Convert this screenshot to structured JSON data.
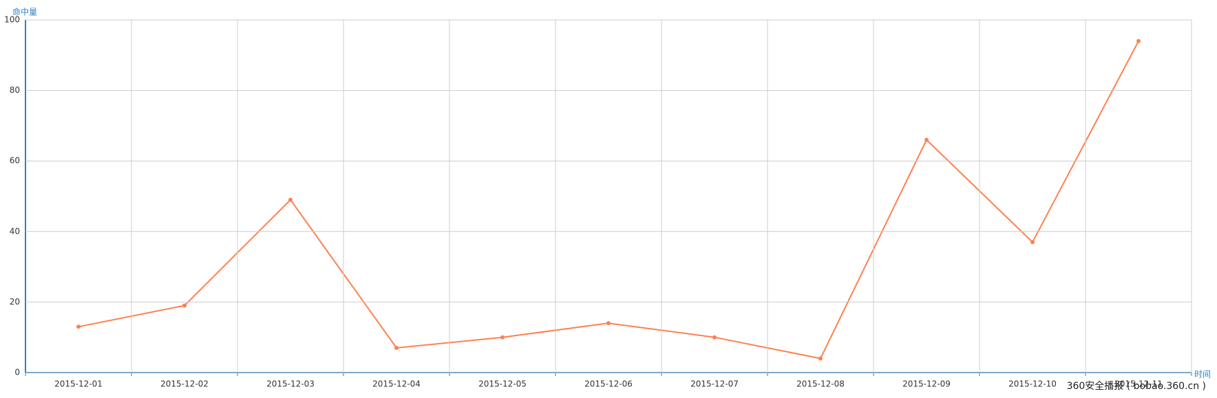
{
  "chart_data": {
    "type": "line",
    "y_axis_label": "命中量",
    "x_axis_label": "时间",
    "categories": [
      "2015-12-01",
      "2015-12-02",
      "2015-12-03",
      "2015-12-04",
      "2015-12-05",
      "2015-12-06",
      "2015-12-07",
      "2015-12-08",
      "2015-12-09",
      "2015-12-10",
      "2015-12-11"
    ],
    "series": [
      {
        "color": "#ff7f50",
        "values": [
          13,
          19,
          49,
          7,
          10,
          14,
          10,
          4,
          66,
          37,
          94
        ]
      }
    ],
    "ylim": [
      0,
      100
    ],
    "yticks": [
      0,
      20,
      40,
      60,
      80,
      100
    ],
    "grid": true,
    "watermark": "360安全播报 ( bobao.360.cn )"
  }
}
